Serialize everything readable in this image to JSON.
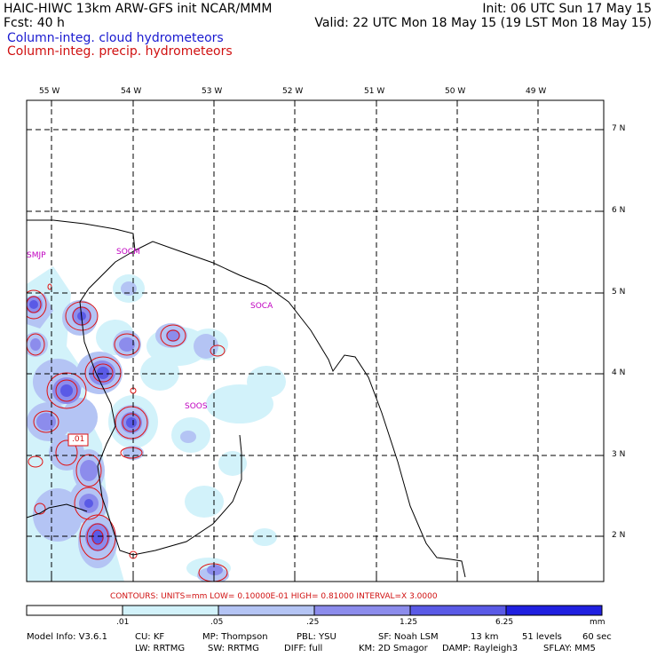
{
  "header": {
    "line1_left": "HAIC-HIWC 13km ARW-GFS init   NCAR/MMM",
    "line1_right": "Init: 06 UTC Sun 17 May 15",
    "line2_left": "Fcst:   40 h",
    "line2_right": "Valid: 22 UTC Mon 18 May 15 (19 LST Mon 18 May 15)",
    "legend_cloud": "Column-integ. cloud hydrometeors",
    "legend_precip": "Column-integ. precip. hydrometeors"
  },
  "map": {
    "lon_labels": [
      "55 W",
      "54 W",
      "53 W",
      "52 W",
      "51 W",
      "50 W",
      "49 W"
    ],
    "lat_labels": [
      "7 N",
      "6 N",
      "5 N",
      "4 N",
      "3 N",
      "2 N"
    ],
    "stations": [
      "SMJP",
      "SOCM",
      "SOCA",
      "SOOS"
    ],
    "contour_label": ".01"
  },
  "contours_line": "CONTOURS:  UNITS=mm  LOW= 0.10000E-01  HIGH= 0.81000     INTERVAL=X  3.0000",
  "colorbar": {
    "labels": [
      ".01",
      ".05",
      ".25",
      "1.25",
      "6.25"
    ],
    "unit": "mm",
    "colors": [
      "#ffffff",
      "#d2f2fa",
      "#b4c4f4",
      "#8c8cec",
      "#5a5ae6",
      "#2020e0"
    ]
  },
  "footer": {
    "line1": [
      "Model Info: V3.6.1",
      "CU: KF",
      "MP: Thompson",
      "PBL: YSU",
      "SF: Noah LSM",
      "13 km",
      "51 levels",
      "60 sec"
    ],
    "line2": [
      "LW: RRTMG",
      "SW: RRTMG",
      "DIFF: full",
      "KM: 2D Smagor",
      "DAMP: Rayleigh3",
      "SFLAY: MM5"
    ]
  }
}
